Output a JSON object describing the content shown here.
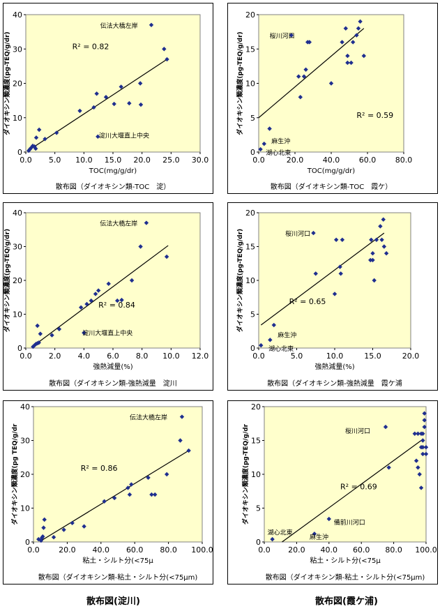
{
  "bottom_titles": [
    "散布図(淀川)",
    "散布図(霞ケ浦)"
  ],
  "chart_data": [
    {
      "type": "scatter",
      "title": "散布図（ダイオキシン類-TOC　淀）",
      "xlabel": "TOC(mg/g/dr)",
      "ylabel": "ダイオキシン類濃度(pg-TEQ/g/dr)",
      "xlim": [
        0,
        30
      ],
      "ylim": [
        0,
        40
      ],
      "xticks": [
        "0.0",
        "5.0",
        "10.0",
        "15.0",
        "20.0",
        "25.0",
        "30.0"
      ],
      "yticks": [
        "0",
        "10",
        "20",
        "30",
        "40"
      ],
      "r2_label": "R² = 0.82",
      "trendline": [
        [
          0.5,
          0.5
        ],
        [
          24.3,
          27
        ]
      ],
      "annotations": [
        {
          "text": "伝法大橋左岸",
          "x": 12.8,
          "y": 37
        },
        {
          "text": "淀川大堰直上中央",
          "x": 12.6,
          "y": 5
        }
      ],
      "points": [
        [
          0.5,
          0.4
        ],
        [
          0.7,
          0.8
        ],
        [
          0.9,
          1.2
        ],
        [
          1.2,
          1.8
        ],
        [
          1.5,
          1.6
        ],
        [
          1.7,
          1.0
        ],
        [
          1.8,
          4.2
        ],
        [
          2.3,
          6.5
        ],
        [
          3.3,
          3.8
        ],
        [
          5.3,
          5.6
        ],
        [
          9.3,
          12.0
        ],
        [
          11.7,
          13.0
        ],
        [
          12.2,
          17.0
        ],
        [
          12.4,
          4.5
        ],
        [
          13.8,
          16.0
        ],
        [
          15.2,
          14.0
        ],
        [
          16.4,
          19.0
        ],
        [
          17.8,
          14.2
        ],
        [
          19.7,
          20.0
        ],
        [
          19.8,
          13.8
        ],
        [
          21.6,
          37.0
        ],
        [
          23.8,
          30.0
        ],
        [
          24.3,
          27.0
        ]
      ]
    },
    {
      "type": "scatter",
      "title": "散布図（ダイオキシン類-TOC　霞ケ）",
      "xlabel": "TOC(mg/g/dr)",
      "ylabel": "ダイオキシン類濃度(pg-TEQ/g/dr)",
      "xlim": [
        0,
        80
      ],
      "ylim": [
        0,
        20
      ],
      "xticks": [
        "0.0",
        "20.0",
        "40.0",
        "60.0",
        "80.0"
      ],
      "yticks": [
        "0",
        "5",
        "10",
        "15",
        "20"
      ],
      "r2_label": "R² = 0.59",
      "trendline": [
        [
          0,
          5
        ],
        [
          58,
          18
        ]
      ],
      "annotations": [
        {
          "text": "桜川河口",
          "x": 6,
          "y": 17
        },
        {
          "text": "麻生沖",
          "x": 7,
          "y": 1.7
        },
        {
          "text": "湖心北東",
          "x": 4,
          "y": 0
        }
      ],
      "points": [
        [
          1,
          0.4
        ],
        [
          3,
          1.2
        ],
        [
          6,
          3.4
        ],
        [
          18,
          17
        ],
        [
          22,
          11
        ],
        [
          23,
          8
        ],
        [
          25,
          11
        ],
        [
          26,
          12
        ],
        [
          27,
          16
        ],
        [
          28,
          16
        ],
        [
          40,
          10
        ],
        [
          46,
          16
        ],
        [
          48,
          18
        ],
        [
          49,
          13
        ],
        [
          49,
          14
        ],
        [
          51,
          13
        ],
        [
          52,
          16
        ],
        [
          54,
          17
        ],
        [
          55,
          18
        ],
        [
          56,
          19
        ],
        [
          58,
          14
        ]
      ]
    },
    {
      "type": "scatter",
      "title": "散布図（ダイオキシン類-強熱減量　淀川",
      "xlabel": "強熱減量(%)",
      "ylabel": "ダイオキシン類濃度(pg-TEQ/g/dr)",
      "xlim": [
        0,
        12
      ],
      "ylim": [
        0,
        40
      ],
      "xticks": [
        "0.0",
        "2.0",
        "4.0",
        "6.0",
        "8.0",
        "10.0",
        "12.0"
      ],
      "yticks": [
        "0",
        "10",
        "20",
        "30",
        "40"
      ],
      "r2_label": "R² = 0.84",
      "trendline": [
        [
          0.4,
          0.2
        ],
        [
          9.8,
          30.3
        ]
      ],
      "annotations": [
        {
          "text": "伝法大橋左岸",
          "x": 5.1,
          "y": 37
        },
        {
          "text": "淀川大堰直上中央",
          "x": 3.9,
          "y": 4.6
        }
      ],
      "points": [
        [
          0.5,
          0.4
        ],
        [
          0.6,
          0.8
        ],
        [
          0.7,
          1.2
        ],
        [
          0.8,
          1.4
        ],
        [
          0.8,
          6.6
        ],
        [
          0.9,
          1.6
        ],
        [
          1.0,
          4.2
        ],
        [
          1.8,
          3.8
        ],
        [
          2.3,
          5.6
        ],
        [
          3.8,
          12.0
        ],
        [
          4.0,
          4.5
        ],
        [
          4.2,
          13.0
        ],
        [
          4.5,
          14.0
        ],
        [
          4.8,
          16.0
        ],
        [
          5.0,
          17.0
        ],
        [
          5.7,
          19.0
        ],
        [
          6.3,
          14.0
        ],
        [
          6.6,
          14.2
        ],
        [
          7.3,
          20.0
        ],
        [
          7.9,
          30.0
        ],
        [
          8.3,
          37.0
        ],
        [
          9.7,
          27.0
        ]
      ]
    },
    {
      "type": "scatter",
      "title": "散布図（ダイオキシン類-強熱減量　霞ケ浦",
      "xlabel": "強熱減量(%)",
      "ylabel": "ダイオキシン類濃度(pg-TEQ/g/dr)",
      "xlim": [
        0,
        20
      ],
      "ylim": [
        0,
        20
      ],
      "xticks": [
        "0.0",
        "5.0",
        "10.0",
        "15.0",
        "20.0"
      ],
      "yticks": [
        "0",
        "5",
        "10",
        "15",
        "20"
      ],
      "r2_label": "R² = 0.65",
      "trendline": [
        [
          0.3,
          3.4
        ],
        [
          16.5,
          17
        ]
      ],
      "annotations": [
        {
          "text": "桜川河口",
          "x": 3.5,
          "y": 17
        },
        {
          "text": "麻生沖",
          "x": 2.5,
          "y": 2
        },
        {
          "text": "湖心北東",
          "x": 1.3,
          "y": 0
        }
      ],
      "points": [
        [
          0.3,
          0.4
        ],
        [
          1.5,
          1.2
        ],
        [
          2.0,
          3.4
        ],
        [
          7.2,
          17
        ],
        [
          7.5,
          11
        ],
        [
          10.0,
          8
        ],
        [
          10.2,
          16
        ],
        [
          10.7,
          12
        ],
        [
          10.8,
          11
        ],
        [
          11.0,
          16
        ],
        [
          14.7,
          13
        ],
        [
          14.8,
          16
        ],
        [
          15.0,
          14
        ],
        [
          15.0,
          13
        ],
        [
          15.2,
          10
        ],
        [
          15.5,
          16
        ],
        [
          16.0,
          18
        ],
        [
          16.2,
          16
        ],
        [
          16.4,
          19
        ],
        [
          16.5,
          15
        ],
        [
          16.8,
          14
        ]
      ]
    },
    {
      "type": "scatter",
      "title": "散布図（ダイオキシン類-粘土・シルト分(<75μm)",
      "xlabel": "粘土・シルト分(<75μ",
      "ylabel": "ダイオキシン類濃度(pg TEQ/g/dr",
      "xlim": [
        0,
        100
      ],
      "ylim": [
        0,
        40
      ],
      "xticks": [
        "0.0",
        "20.0",
        "40.0",
        "60.0",
        "80.0",
        "100.0"
      ],
      "yticks": [
        "0",
        "10",
        "20",
        "30",
        "40"
      ],
      "r2_label": "R² = 0.86",
      "trendline": [
        [
          4,
          0.2
        ],
        [
          92,
          27
        ]
      ],
      "annotations": [
        {
          "text": "伝法大橋左岸",
          "x": 57,
          "y": 37
        }
      ],
      "points": [
        [
          3,
          0.8
        ],
        [
          4.5,
          0.4
        ],
        [
          5,
          1.2
        ],
        [
          5.5,
          1.6
        ],
        [
          6,
          4.2
        ],
        [
          6.5,
          6.6
        ],
        [
          12,
          1.4
        ],
        [
          18,
          3.6
        ],
        [
          23,
          5.6
        ],
        [
          30,
          4.6
        ],
        [
          42,
          12
        ],
        [
          48,
          13
        ],
        [
          56,
          16
        ],
        [
          57,
          14
        ],
        [
          58,
          17
        ],
        [
          68,
          19
        ],
        [
          70,
          14
        ],
        [
          72,
          14
        ],
        [
          79,
          20
        ],
        [
          87,
          30
        ],
        [
          88,
          37
        ],
        [
          92,
          27
        ]
      ]
    },
    {
      "type": "scatter",
      "title": "散布図（ダイオキシン類-粘土・シルト分(<75μm)",
      "xlabel": "粘土・シルト分(<75μ",
      "ylabel": "ダイオキシン類濃度(pg-TEQ/g/dr",
      "xlim": [
        0,
        100
      ],
      "ylim": [
        0,
        20
      ],
      "xticks": [
        "0.0",
        "20.0",
        "40.0",
        "60.0",
        "80.0",
        "100.0"
      ],
      "yticks": [
        "0",
        "5",
        "10",
        "15",
        "20"
      ],
      "r2_label": "R² = 0.69",
      "trendline": [
        [
          11,
          0
        ],
        [
          97,
          15
        ]
      ],
      "annotations": [
        {
          "text": "桜川河口",
          "x": 50,
          "y": 16.5
        },
        {
          "text": "湖心北東",
          "x": 2,
          "y": 1.5
        },
        {
          "text": "備前川河口",
          "x": 43,
          "y": 3
        },
        {
          "text": "麻生沖",
          "x": 28,
          "y": 0.8
        }
      ],
      "points": [
        [
          5,
          0.4
        ],
        [
          31,
          1.2
        ],
        [
          40,
          3.4
        ],
        [
          75,
          17
        ],
        [
          77,
          11
        ],
        [
          93,
          16
        ],
        [
          94,
          12
        ],
        [
          95,
          16
        ],
        [
          95,
          11
        ],
        [
          96,
          10
        ],
        [
          97,
          14
        ],
        [
          97,
          8
        ],
        [
          97,
          16
        ],
        [
          98,
          13
        ],
        [
          98,
          14
        ],
        [
          98,
          15
        ],
        [
          98,
          16
        ],
        [
          99,
          17
        ],
        [
          99,
          18
        ],
        [
          99,
          19
        ],
        [
          100,
          14
        ],
        [
          100,
          13
        ]
      ]
    }
  ]
}
